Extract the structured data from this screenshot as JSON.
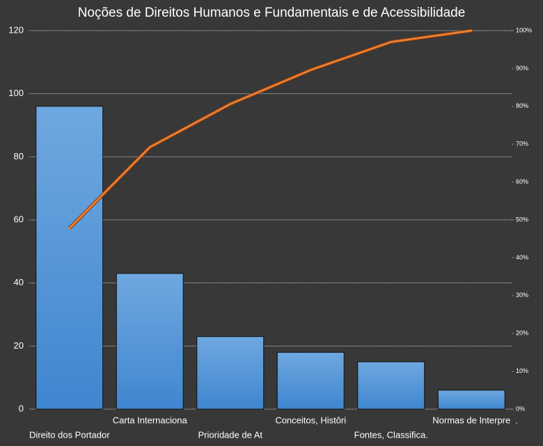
{
  "chart_data": {
    "type": "pareto",
    "title": "Noções de Direitos Humanos e Fundamentais e de Acessibilidade",
    "categories": [
      "Direito dos Portador",
      "Carta Internaciona",
      "Prioridade de At",
      "Conceitos, Histôri",
      "Fontes, Classifica.",
      "Normas de Interpre"
    ],
    "series": [
      {
        "type": "bar",
        "color": "#4a8fd6",
        "values": [
          96,
          43,
          23,
          18,
          15,
          6
        ]
      },
      {
        "type": "line",
        "color": "#ed7d31",
        "axis": "y2",
        "values": [
          47.8,
          69.2,
          80.6,
          89.6,
          97.0,
          100
        ]
      }
    ],
    "annotations": [
      "."
    ],
    "ylim": [
      0,
      120
    ],
    "yticks": [
      0,
      20,
      40,
      60,
      80,
      100,
      120
    ],
    "y2lim": [
      0,
      100
    ],
    "y2ticks": [
      {
        "value": 0,
        "label": "0%"
      },
      {
        "value": 10,
        "label": "10%"
      },
      {
        "value": 20,
        "label": "20%"
      },
      {
        "value": 30,
        "label": "30%"
      },
      {
        "value": 40,
        "label": "40%"
      },
      {
        "value": 50,
        "label": "50%"
      },
      {
        "value": 60,
        "label": "60%"
      },
      {
        "value": 70,
        "label": "70%"
      },
      {
        "value": 80,
        "label": "80%"
      },
      {
        "value": 90,
        "label": "90%"
      },
      {
        "value": 100,
        "label": "100%"
      }
    ],
    "grid": true
  }
}
